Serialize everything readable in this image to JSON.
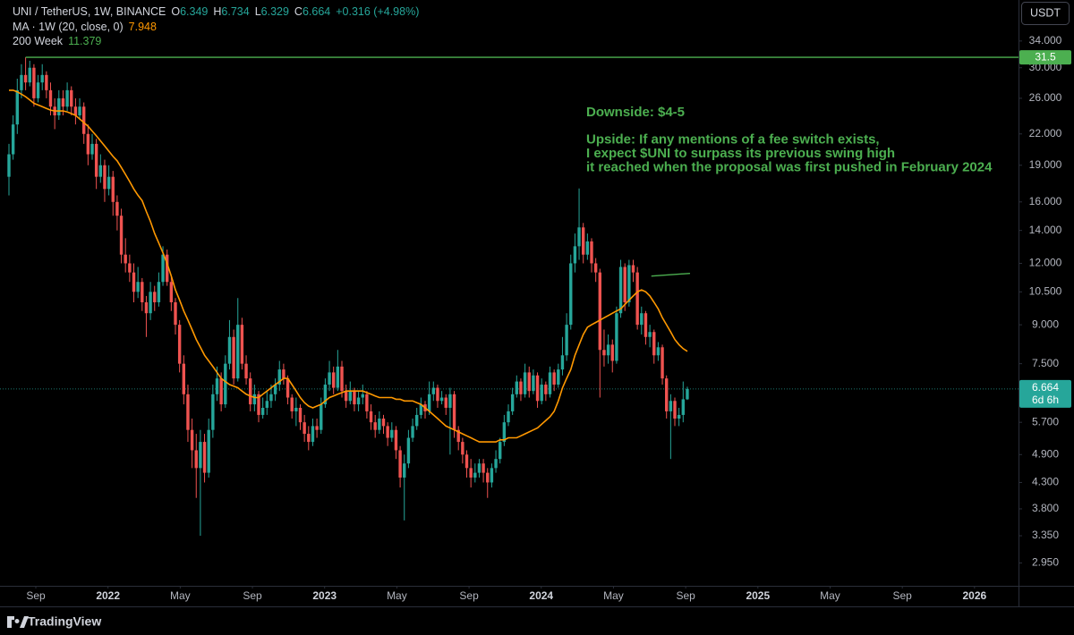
{
  "chart_data": {
    "type": "candlestick",
    "symbol": "UNI / TetherUS, 1W, BINANCE",
    "ohlc_letters": [
      "O",
      "H",
      "L",
      "C"
    ],
    "change_label": "+0.316 (+4.98%)",
    "up_color": "#26a69a",
    "down_color": "#ef5350",
    "log_scale": true,
    "ylim": [
      2.65,
      41.2
    ],
    "yticks": [
      {
        "value": 34,
        "label": "34.000"
      },
      {
        "value": 30,
        "label": "30.000"
      },
      {
        "value": 26,
        "label": "26.000"
      },
      {
        "value": 22,
        "label": "22.000"
      },
      {
        "value": 19,
        "label": "19.000"
      },
      {
        "value": 16,
        "label": "16.000"
      },
      {
        "value": 14,
        "label": "14.000"
      },
      {
        "value": 12,
        "label": "12.000"
      },
      {
        "value": 10.5,
        "label": "10.500"
      },
      {
        "value": 9,
        "label": "9.000"
      },
      {
        "value": 7.5,
        "label": "7.500"
      },
      {
        "value": 5.7,
        "label": "5.700"
      },
      {
        "value": 4.9,
        "label": "4.900"
      },
      {
        "value": 4.3,
        "label": "4.300"
      },
      {
        "value": 3.8,
        "label": "3.800"
      },
      {
        "value": 3.35,
        "label": "3.350"
      },
      {
        "value": 2.95,
        "label": "2.950"
      }
    ],
    "xticks": [
      {
        "value": "2021-09",
        "label": "Sep"
      },
      {
        "value": "2022-01",
        "label": "2022"
      },
      {
        "value": "2022-05",
        "label": "May"
      },
      {
        "value": "2022-09",
        "label": "Sep"
      },
      {
        "value": "2023-01",
        "label": "2023"
      },
      {
        "value": "2023-05",
        "label": "May"
      },
      {
        "value": "2023-09",
        "label": "Sep"
      },
      {
        "value": "2024-01",
        "label": "2024"
      },
      {
        "value": "2024-05",
        "label": "May"
      },
      {
        "value": "2024-09",
        "label": "Sep"
      },
      {
        "value": "2025-01",
        "label": "2025"
      },
      {
        "value": "2025-05",
        "label": "May"
      },
      {
        "value": "2025-09",
        "label": "Sep"
      },
      {
        "value": "2026-01",
        "label": "2026"
      }
    ],
    "countdown": "6d 6h",
    "candles": [
      [
        18,
        21,
        16.5,
        20
      ],
      [
        20,
        24,
        19.5,
        23
      ],
      [
        23,
        28.5,
        22,
        27
      ],
      [
        27,
        30.5,
        26,
        29
      ],
      [
        29,
        31.5,
        27,
        28
      ],
      [
        28,
        31,
        27.5,
        30
      ],
      [
        30,
        30.5,
        25,
        26
      ],
      [
        26,
        29,
        25.5,
        28
      ],
      [
        28,
        30.5,
        27,
        29
      ],
      [
        29,
        29.5,
        26,
        27
      ],
      [
        27,
        28,
        24,
        25
      ],
      [
        25,
        26,
        22.5,
        24
      ],
      [
        24,
        27,
        23.5,
        26
      ],
      [
        26,
        27,
        24,
        25
      ],
      [
        25,
        28,
        24.5,
        27
      ],
      [
        27,
        27.5,
        24,
        25
      ],
      [
        25,
        26,
        23,
        24
      ],
      [
        24,
        26,
        23.5,
        25
      ],
      [
        25,
        25.5,
        21,
        22
      ],
      [
        22,
        23,
        19,
        20
      ],
      [
        20,
        22,
        19.5,
        21
      ],
      [
        21,
        21.5,
        17,
        18
      ],
      [
        18,
        20,
        17.5,
        19
      ],
      [
        19,
        19.5,
        16,
        17
      ],
      [
        17,
        19,
        16.5,
        18
      ],
      [
        18,
        18.5,
        15,
        16
      ],
      [
        16,
        16.5,
        14,
        15
      ],
      [
        15,
        15.5,
        12,
        12.5
      ],
      [
        12.5,
        13.5,
        11.5,
        12
      ],
      [
        12,
        12.5,
        11,
        11.5
      ],
      [
        11.5,
        12,
        10,
        10.5
      ],
      [
        10.5,
        11.8,
        10.2,
        11
      ],
      [
        11,
        11.2,
        9.6,
        10
      ],
      [
        10,
        10.3,
        8.5,
        9.5
      ],
      [
        9.5,
        11,
        9.2,
        10.5
      ],
      [
        10.5,
        10.8,
        9.6,
        10
      ],
      [
        10,
        11.5,
        9.8,
        11
      ],
      [
        11,
        13,
        10.8,
        12.5
      ],
      [
        12.5,
        12.8,
        10.8,
        11
      ],
      [
        11,
        11.3,
        9.6,
        10
      ],
      [
        10,
        10.2,
        8.6,
        9
      ],
      [
        9,
        9.2,
        7.2,
        7.5
      ],
      [
        7.5,
        7.8,
        6.2,
        6.5
      ],
      [
        6.5,
        6.8,
        5.2,
        5.5
      ],
      [
        5.5,
        5.8,
        4.6,
        5.0
      ],
      [
        5.0,
        5.4,
        4.0,
        4.6
      ],
      [
        4.6,
        5.5,
        3.35,
        5.2
      ],
      [
        5.2,
        5.4,
        4.3,
        4.5
      ],
      [
        4.5,
        5.8,
        4.4,
        5.5
      ],
      [
        5.5,
        6.8,
        5.3,
        6.5
      ],
      [
        6.5,
        7.4,
        6.3,
        7.0
      ],
      [
        7.0,
        7.2,
        6.0,
        6.2
      ],
      [
        6.2,
        7.8,
        6.1,
        7.5
      ],
      [
        7.5,
        9.2,
        7.3,
        8.5
      ],
      [
        8.5,
        8.8,
        6.8,
        7.0
      ],
      [
        7.0,
        10.2,
        6.9,
        9.0
      ],
      [
        9.0,
        9.3,
        7.3,
        7.5
      ],
      [
        7.5,
        7.8,
        6.8,
        7.0
      ],
      [
        7.0,
        7.2,
        6.0,
        6.2
      ],
      [
        6.2,
        6.8,
        6.0,
        6.5
      ],
      [
        6.5,
        6.6,
        5.7,
        5.9
      ],
      [
        5.9,
        6.4,
        5.8,
        6.1
      ],
      [
        6.1,
        6.6,
        5.9,
        6.3
      ],
      [
        6.3,
        6.8,
        6.1,
        6.5
      ],
      [
        6.5,
        7.0,
        6.3,
        6.8
      ],
      [
        6.8,
        7.6,
        6.6,
        7.3
      ],
      [
        7.3,
        7.5,
        6.8,
        7.0
      ],
      [
        7.0,
        7.1,
        6.2,
        6.4
      ],
      [
        6.4,
        6.5,
        5.8,
        6.0
      ],
      [
        6.0,
        6.4,
        5.6,
        6.1
      ],
      [
        6.1,
        6.2,
        5.5,
        5.7
      ],
      [
        5.7,
        5.9,
        5.2,
        5.4
      ],
      [
        5.4,
        5.6,
        5.0,
        5.2
      ],
      [
        5.2,
        5.8,
        5.1,
        5.6
      ],
      [
        5.6,
        5.8,
        5.3,
        5.5
      ],
      [
        5.5,
        6.4,
        5.4,
        6.2
      ],
      [
        6.2,
        7.0,
        6.1,
        6.8
      ],
      [
        6.8,
        7.6,
        6.6,
        7.2
      ],
      [
        7.2,
        7.4,
        6.5,
        6.7
      ],
      [
        6.7,
        8.0,
        6.6,
        7.4
      ],
      [
        7.4,
        7.6,
        6.4,
        6.6
      ],
      [
        6.6,
        6.8,
        6.1,
        6.3
      ],
      [
        6.3,
        6.9,
        6.2,
        6.6
      ],
      [
        6.6,
        6.7,
        6.0,
        6.2
      ],
      [
        6.2,
        6.6,
        6.0,
        6.4
      ],
      [
        6.4,
        6.8,
        6.2,
        6.5
      ],
      [
        6.5,
        6.6,
        5.8,
        6.0
      ],
      [
        6.0,
        6.2,
        5.5,
        5.7
      ],
      [
        5.7,
        5.9,
        5.3,
        5.5
      ],
      [
        5.5,
        6.0,
        5.4,
        5.8
      ],
      [
        5.8,
        5.9,
        5.4,
        5.6
      ],
      [
        5.6,
        5.7,
        5.1,
        5.3
      ],
      [
        5.3,
        5.7,
        5.2,
        5.5
      ],
      [
        5.5,
        5.6,
        4.8,
        5.0
      ],
      [
        5.0,
        5.1,
        4.2,
        4.4
      ],
      [
        4.4,
        4.9,
        3.6,
        4.7
      ],
      [
        4.7,
        5.5,
        4.6,
        5.3
      ],
      [
        5.3,
        5.8,
        5.2,
        5.6
      ],
      [
        5.6,
        6.1,
        5.5,
        5.9
      ],
      [
        5.9,
        6.4,
        5.8,
        6.2
      ],
      [
        6.2,
        6.3,
        5.8,
        6.0
      ],
      [
        6.0,
        6.9,
        5.9,
        6.5
      ],
      [
        6.5,
        6.9,
        6.3,
        6.7
      ],
      [
        6.7,
        6.8,
        6.1,
        6.3
      ],
      [
        6.3,
        6.6,
        6.2,
        6.4
      ],
      [
        6.4,
        6.5,
        5.9,
        6.1
      ],
      [
        6.1,
        6.7,
        4.9,
        6.5
      ],
      [
        6.5,
        6.6,
        5.3,
        5.5
      ],
      [
        5.5,
        5.6,
        5.0,
        5.2
      ],
      [
        5.2,
        5.3,
        4.7,
        4.9
      ],
      [
        4.9,
        5.0,
        4.4,
        4.6
      ],
      [
        4.6,
        4.8,
        4.2,
        4.4
      ],
      [
        4.4,
        4.7,
        4.3,
        4.5
      ],
      [
        4.5,
        4.8,
        4.4,
        4.7
      ],
      [
        4.7,
        4.8,
        4.3,
        4.5
      ],
      [
        4.5,
        4.6,
        4.0,
        4.3
      ],
      [
        4.3,
        4.7,
        4.2,
        4.6
      ],
      [
        4.6,
        5.0,
        4.5,
        4.8
      ],
      [
        4.8,
        5.3,
        4.7,
        5.2
      ],
      [
        5.2,
        5.9,
        5.1,
        5.7
      ],
      [
        5.7,
        6.2,
        5.6,
        6.0
      ],
      [
        6.0,
        6.7,
        5.9,
        6.5
      ],
      [
        6.5,
        7.1,
        6.4,
        6.9
      ],
      [
        6.9,
        7.0,
        6.3,
        6.5
      ],
      [
        6.5,
        7.5,
        6.4,
        7.2
      ],
      [
        7.2,
        7.4,
        6.4,
        6.6
      ],
      [
        6.6,
        7.3,
        6.5,
        7.1
      ],
      [
        7.1,
        7.2,
        6.1,
        6.3
      ],
      [
        6.3,
        7.0,
        6.2,
        6.8
      ],
      [
        6.8,
        6.9,
        6.3,
        6.5
      ],
      [
        6.5,
        7.4,
        6.4,
        7.2
      ],
      [
        7.2,
        7.3,
        6.6,
        6.8
      ],
      [
        6.8,
        7.5,
        6.7,
        7.3
      ],
      [
        7.3,
        8.5,
        7.1,
        7.8
      ],
      [
        7.8,
        9.5,
        7.6,
        9.0
      ],
      [
        9.0,
        12.5,
        8.8,
        12.0
      ],
      [
        12.0,
        13.8,
        11.5,
        13.0
      ],
      [
        13.0,
        17.043,
        12.2,
        14.2
      ],
      [
        14.2,
        14.5,
        12.0,
        12.5
      ],
      [
        12.5,
        13.8,
        12.2,
        13.3
      ],
      [
        13.3,
        13.5,
        11.5,
        12.0
      ],
      [
        12.0,
        12.3,
        11.0,
        11.5
      ],
      [
        11.5,
        11.7,
        6.4,
        8.0
      ],
      [
        8.0,
        8.8,
        7.4,
        7.8
      ],
      [
        7.8,
        8.6,
        7.5,
        8.2
      ],
      [
        8.2,
        8.4,
        7.2,
        7.6
      ],
      [
        7.6,
        9.8,
        7.5,
        9.5
      ],
      [
        9.5,
        12.2,
        9.3,
        11.8
      ],
      [
        11.8,
        12.0,
        9.6,
        10.0
      ],
      [
        10.0,
        12.2,
        9.8,
        11.9
      ],
      [
        11.9,
        12.2,
        11.0,
        11.5
      ],
      [
        11.5,
        11.8,
        8.8,
        9.0
      ],
      [
        9.0,
        9.8,
        8.6,
        9.5
      ],
      [
        9.5,
        9.6,
        8.2,
        8.5
      ],
      [
        8.5,
        9.0,
        8.1,
        8.7
      ],
      [
        8.7,
        8.8,
        7.5,
        7.8
      ],
      [
        7.8,
        8.3,
        7.6,
        8.1
      ],
      [
        8.1,
        8.2,
        6.8,
        7.0
      ],
      [
        7.0,
        7.1,
        5.8,
        6.0
      ],
      [
        6.0,
        6.5,
        4.8,
        6.3
      ],
      [
        6.3,
        6.4,
        5.6,
        5.8
      ],
      [
        5.8,
        6.1,
        5.6,
        5.9
      ],
      [
        5.9,
        6.9,
        5.7,
        6.349
      ],
      [
        6.349,
        6.734,
        6.329,
        6.664
      ]
    ],
    "moving_average": {
      "name": "MA · 1W (20, close, 0)",
      "color": "#ff9800",
      "values": [
        27,
        27,
        26.8,
        26.5,
        26.2,
        25.8,
        25.4,
        25.2,
        25,
        24.8,
        24.6,
        24.5,
        24.5,
        24.5,
        24.4,
        24.2,
        24,
        23.6,
        23.2,
        22.8,
        22.3,
        21.8,
        21.3,
        20.8,
        20.3,
        19.8,
        19.4,
        18.8,
        18.2,
        17.6,
        17,
        16.5,
        16.1,
        15.3,
        14.6,
        13.8,
        13.2,
        12.6,
        12,
        11.3,
        10.6,
        10.1,
        9.6,
        9.2,
        8.8,
        8.4,
        8.1,
        7.8,
        7.6,
        7.4,
        7.2,
        7.0,
        6.9,
        6.8,
        6.75,
        6.7,
        6.6,
        6.5,
        6.45,
        6.4,
        6.4,
        6.5,
        6.6,
        6.7,
        6.8,
        6.9,
        7.0,
        7.0,
        6.8,
        6.6,
        6.4,
        6.25,
        6.15,
        6.1,
        6.15,
        6.2,
        6.3,
        6.4,
        6.45,
        6.5,
        6.55,
        6.6,
        6.6,
        6.6,
        6.6,
        6.6,
        6.55,
        6.5,
        6.45,
        6.4,
        6.4,
        6.4,
        6.4,
        6.35,
        6.35,
        6.3,
        6.3,
        6.3,
        6.25,
        6.2,
        6.1,
        6.0,
        5.9,
        5.8,
        5.7,
        5.6,
        5.55,
        5.5,
        5.45,
        5.4,
        5.35,
        5.3,
        5.25,
        5.2,
        5.2,
        5.2,
        5.2,
        5.2,
        5.25,
        5.25,
        5.3,
        5.3,
        5.3,
        5.35,
        5.4,
        5.45,
        5.5,
        5.55,
        5.65,
        5.75,
        5.85,
        6.0,
        6.3,
        6.7,
        7.0,
        7.3,
        7.8,
        8.2,
        8.6,
        8.9,
        9.0,
        9.1,
        9.2,
        9.3,
        9.4,
        9.5,
        9.6,
        9.7,
        9.9,
        10.1,
        10.3,
        10.5,
        10.6,
        10.5,
        10.3,
        10.0,
        9.7,
        9.3,
        9.0,
        8.7,
        8.4,
        8.2,
        8.05,
        7.948
      ]
    },
    "week200": {
      "name": "200 Week",
      "color": "#4caf50",
      "value": 11.379
    },
    "level_color": "#4caf50",
    "annotations": [
      "Downside: $4-5",
      "Upside: If any mentions of a fee switch exists,",
      "I expect $UNI to surpass its previous swing high",
      "it reached when the proposal was first pushed in February 2024"
    ]
  },
  "ui": {
    "currency_button": "USDT",
    "brand": "TradingView"
  }
}
